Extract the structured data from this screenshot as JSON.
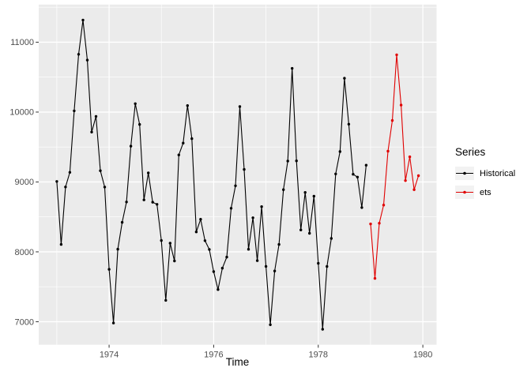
{
  "chart_data": {
    "type": "line",
    "title": "",
    "xlabel": "Time",
    "ylabel": "",
    "xlim": [
      1972.6542,
      1980.2625
    ],
    "ylim": [
      6670.75,
      11538.25
    ],
    "grid": true,
    "x_ticks": {
      "major": [
        1974,
        1976,
        1978,
        1980
      ],
      "labels": [
        "1974",
        "1976",
        "1978",
        "1980"
      ],
      "minor": [
        1973,
        1975,
        1977,
        1979
      ]
    },
    "y_ticks": {
      "major": [
        7000,
        8000,
        9000,
        10000,
        11000
      ],
      "labels": [
        "7000",
        "8000",
        "9000",
        "10000",
        "11000"
      ],
      "minor": [
        7500,
        8500,
        9500,
        10500,
        11500
      ]
    },
    "legend": {
      "title": "Series",
      "position": "right",
      "entries": [
        {
          "label": "Historical",
          "color": "#000000"
        },
        {
          "label": "ets",
          "color": "#E00000"
        }
      ]
    },
    "series": [
      {
        "name": "Historical",
        "color": "#000000",
        "start": 1973,
        "frequency": 12,
        "values": [
          9007,
          8106,
          8928,
          9137,
          10017,
          10826,
          11317,
          10744,
          9713,
          9938,
          9161,
          8927,
          7750,
          6981,
          8038,
          8422,
          8714,
          9512,
          10120,
          9823,
          8743,
          9129,
          8710,
          8680,
          8162,
          7306,
          8124,
          7870,
          9387,
          9556,
          10093,
          9620,
          8285,
          8466,
          8160,
          8034,
          7717,
          7461,
          7767,
          7925,
          8623,
          8945,
          10078,
          9179,
          8037,
          8488,
          7874,
          8647,
          7792,
          6957,
          7726,
          8106,
          8890,
          9299,
          10625,
          9302,
          8314,
          8850,
          8265,
          8796,
          7836,
          6892,
          7791,
          8192,
          9115,
          9434,
          10484,
          9827,
          9110,
          9070,
          8633,
          9240
        ]
      },
      {
        "name": "ets",
        "color": "#E00000",
        "start": 1979,
        "frequency": 12,
        "values": [
          8400,
          7620,
          8410,
          8670,
          9440,
          9880,
          10820,
          10100,
          9020,
          9360,
          8890,
          9090
        ]
      }
    ]
  },
  "styles": {
    "panel_bg": "#EBEBEB",
    "grid_color": "#FFFFFF",
    "axis_text_color": "#4D4D4D",
    "tick_mark_color": "#333333",
    "legend_key_bg": "#F2F2F2"
  }
}
